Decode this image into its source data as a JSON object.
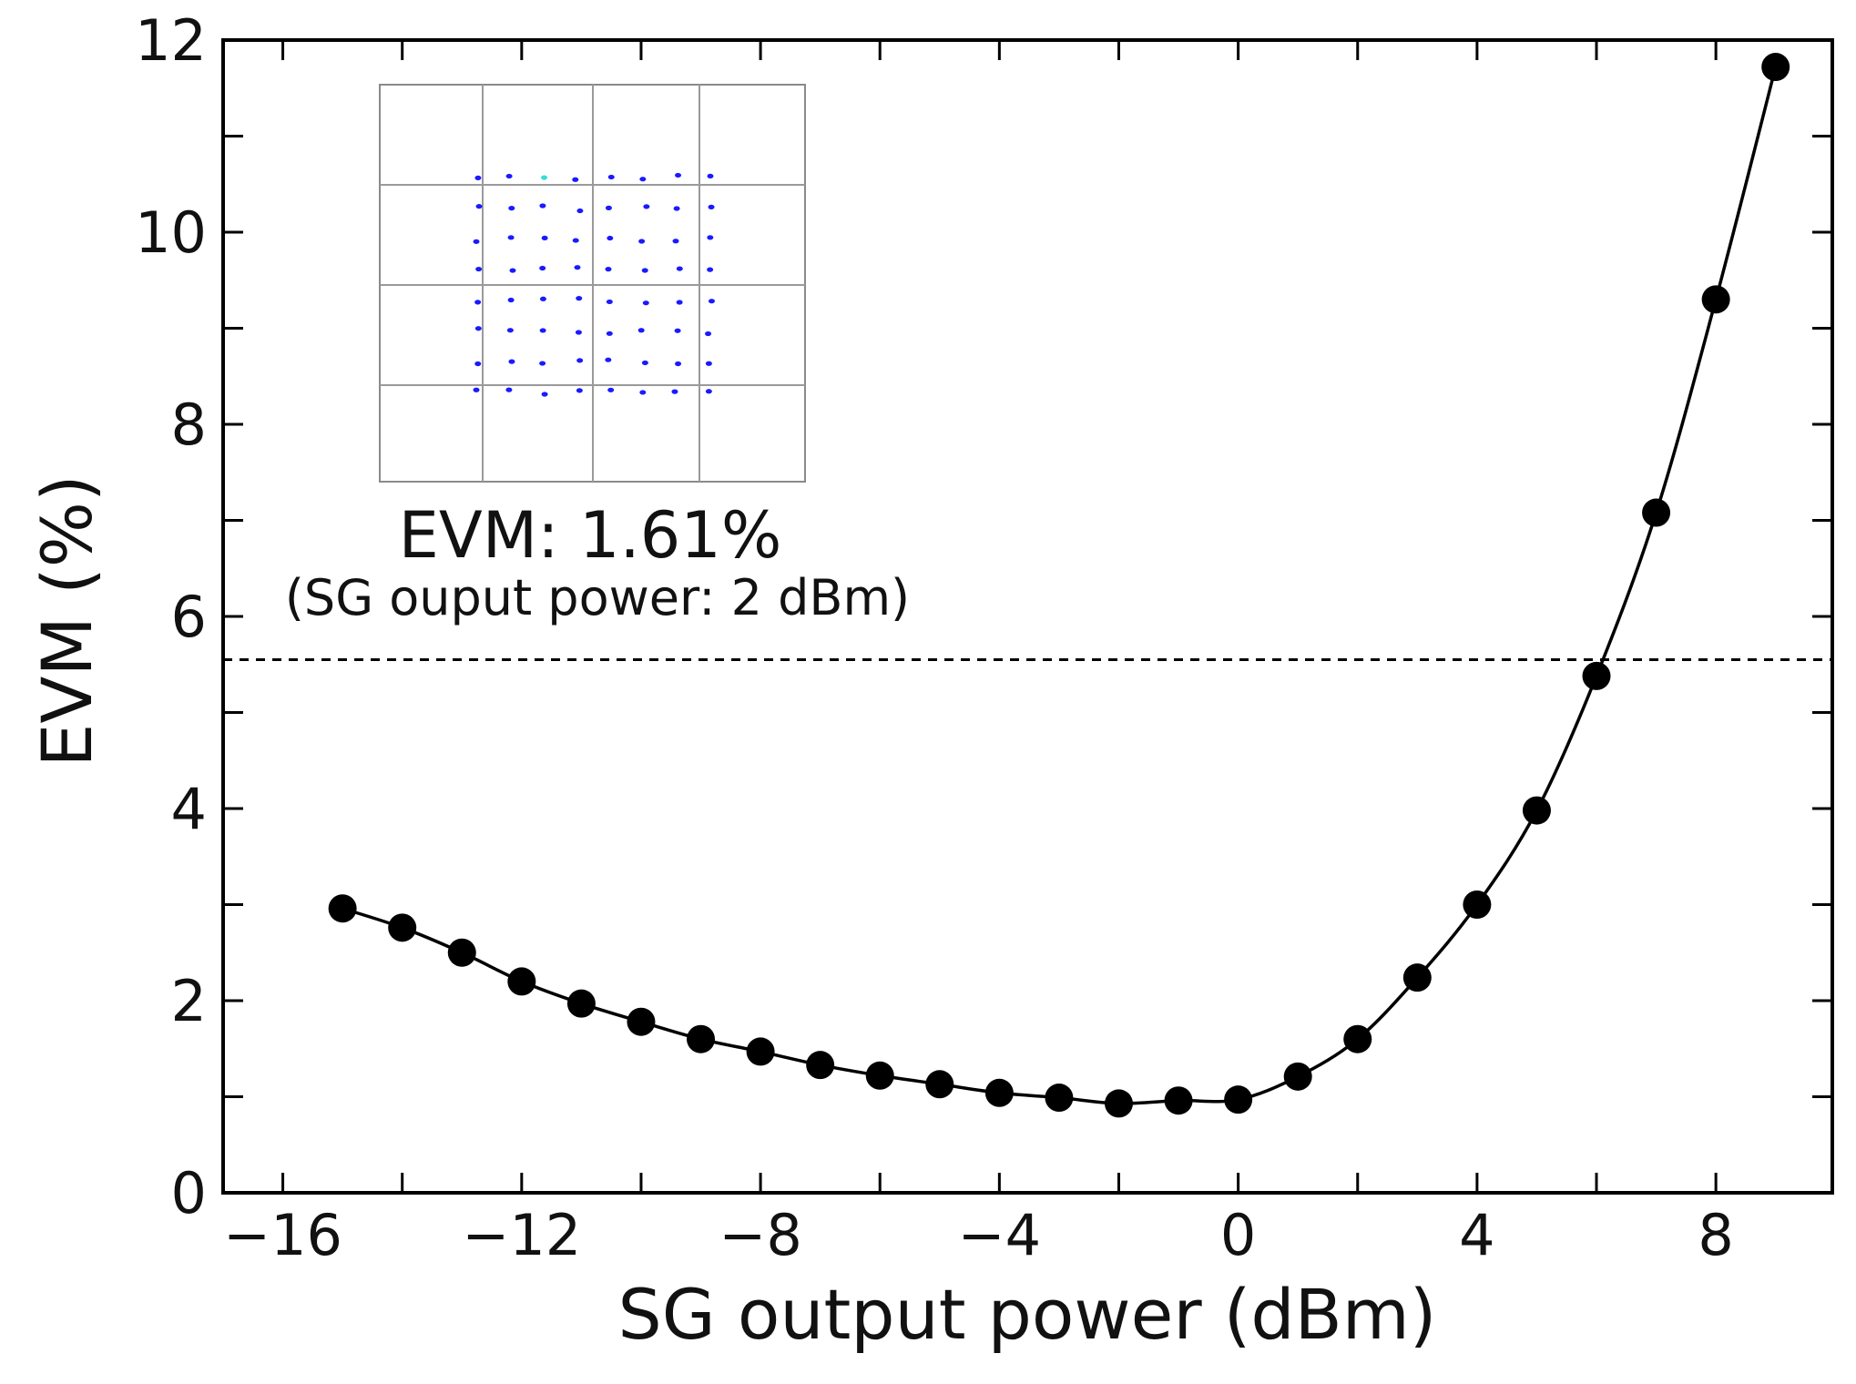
{
  "chart_data": {
    "type": "line",
    "title": "",
    "xlabel": "SG output power (dBm)",
    "ylabel": "EVM (%)",
    "xlim": [
      -17,
      9.95
    ],
    "ylim": [
      0,
      12
    ],
    "xticks": [
      -16,
      -14,
      -12,
      -10,
      -8,
      -6,
      -4,
      -2,
      0,
      2,
      4,
      6,
      8
    ],
    "xtick_labels": [
      "−16",
      "",
      "−12",
      "",
      "−8",
      "",
      "−4",
      "",
      "0",
      "",
      "4",
      "",
      "8"
    ],
    "yticks": [
      0,
      1,
      2,
      3,
      4,
      5,
      6,
      7,
      8,
      9,
      10,
      11,
      12
    ],
    "ytick_labels": [
      "0",
      "",
      "2",
      "",
      "4",
      "",
      "6",
      "",
      "8",
      "",
      "10",
      "",
      "12"
    ],
    "grid": false,
    "series": [
      {
        "name": "EVM",
        "marker": "circle",
        "color": "#000000",
        "x": [
          -15,
          -14,
          -13,
          -12,
          -11,
          -10,
          -9,
          -8,
          -7,
          -6,
          -5,
          -4,
          -3,
          -2,
          -1,
          0,
          1,
          2,
          3,
          4,
          5,
          6,
          7,
          8,
          9
        ],
        "y": [
          2.96,
          2.76,
          2.5,
          2.2,
          1.97,
          1.78,
          1.6,
          1.47,
          1.33,
          1.22,
          1.13,
          1.04,
          0.99,
          0.93,
          0.96,
          0.97,
          1.21,
          1.6,
          2.24,
          3.0,
          3.98,
          5.38,
          7.08,
          9.3,
          11.72
        ]
      }
    ],
    "reference_line": {
      "y": 5.55,
      "style": "dashed"
    },
    "inset": {
      "title": "EVM: 1.61%",
      "subtitle": "(SG ouput power: 2 dBm)",
      "description": "64-QAM constellation",
      "point_color": "#1a1aff",
      "highlight_color": "#33dddd"
    }
  }
}
